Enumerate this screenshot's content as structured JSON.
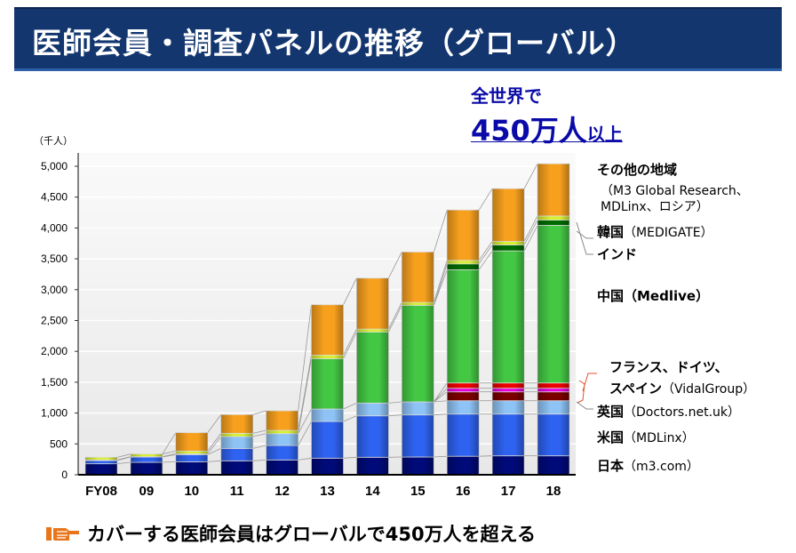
{
  "header": {
    "title": "医師会員・調査パネルの推移（グローバル）"
  },
  "headline": {
    "line1": "全世界で",
    "big": "450万人",
    "small": "以上"
  },
  "footer": {
    "icon": "pointing-hand-icon",
    "text": "カバーする医師会員はグローバルで450万人を超える"
  },
  "legend": {
    "other": {
      "label": "その他の地域",
      "sub1": "（M3 Global Research、",
      "sub2": "MDLinx、ロシア）"
    },
    "korea": {
      "label": "韓国",
      "sub": "（MEDIGATE）"
    },
    "india": {
      "label": "インド"
    },
    "china": {
      "label": "中国（Medlive）"
    },
    "eu": {
      "label1": "フランス、ドイツ、",
      "label2": "スペイン",
      "sub": "（VidalGroup）"
    },
    "uk": {
      "label": "英国",
      "sub": "（Doctors.net.uk）"
    },
    "us": {
      "label": "米国",
      "sub": "（MDLinx）"
    },
    "japan": {
      "label": "日本",
      "sub": "（m3.com）"
    }
  },
  "chart_data": {
    "type": "bar",
    "stacked": true,
    "ylabel": "（千人）",
    "ylim": [
      0,
      5000
    ],
    "yticks": [
      "0",
      "500",
      "1,000",
      "1,500",
      "2,000",
      "2,500",
      "3,000",
      "3,500",
      "4,000",
      "4,500",
      "5,000"
    ],
    "grid": true,
    "categories": [
      "FY08",
      "09",
      "10",
      "11",
      "12",
      "13",
      "14",
      "15",
      "16",
      "17",
      "18"
    ],
    "series": [
      {
        "name": "日本（m3.com）",
        "color": "#000a78",
        "values": [
          178,
          202,
          211,
          226,
          240,
          269,
          284,
          288,
          300,
          307,
          307
        ]
      },
      {
        "name": "米国（MDLinx）",
        "color": "#2e62f0",
        "values": [
          52,
          86,
          115,
          201,
          235,
          595,
          671,
          682,
          684,
          677,
          677
        ]
      },
      {
        "name": "英国（Doctors.net.uk）",
        "color": "#8ec3f5",
        "values": [
          10,
          5,
          14,
          192,
          192,
          202,
          207,
          211,
          216,
          216,
          216
        ]
      },
      {
        "name": "フランス、ドイツ、スペイン（VidalGroup）",
        "color": "#7a0000",
        "values": [
          0,
          0,
          0,
          0,
          0,
          0,
          0,
          0,
          144,
          144,
          144
        ]
      },
      {
        "name": "フランス、ドイツ、スペイン（VidalGroup）",
        "color": "#e800e0",
        "values": [
          0,
          0,
          0,
          0,
          0,
          0,
          0,
          0,
          58,
          58,
          58
        ]
      },
      {
        "name": "フランス、ドイツ、スペイン（VidalGroup）",
        "color": "#ee0000",
        "values": [
          0,
          0,
          0,
          0,
          0,
          0,
          0,
          0,
          86,
          86,
          86
        ]
      },
      {
        "name": "中国（Medlive）",
        "color": "#44c844",
        "values": [
          0,
          0,
          0,
          0,
          0,
          816,
          1152,
          1565,
          1834,
          2141,
          2554
        ]
      },
      {
        "name": "インド",
        "color": "#006a00",
        "values": [
          0,
          0,
          0,
          0,
          0,
          0,
          0,
          0,
          96,
          96,
          86
        ]
      },
      {
        "name": "韓国（MEDIGATE）",
        "color": "#d8f030",
        "values": [
          43,
          43,
          44,
          53,
          53,
          57,
          48,
          48,
          57,
          57,
          67
        ]
      },
      {
        "name": "その他の地域（M3 Global Research、MDLinx、ロシア）",
        "color": "#f7a01e",
        "values": [
          0,
          0,
          298,
          303,
          317,
          816,
          825,
          816,
          816,
          855,
          845
        ]
      }
    ]
  }
}
